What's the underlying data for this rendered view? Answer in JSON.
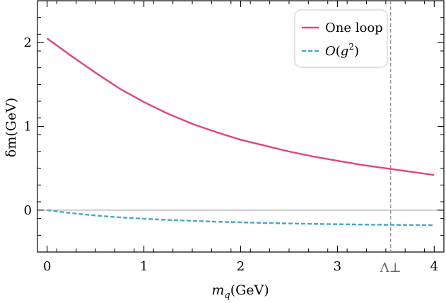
{
  "chart_data": {
    "type": "line",
    "xlabel": "m_q (GeV)",
    "xlabel_parts": {
      "symbol": "m",
      "subscript": "q",
      "unit": "(GeV)"
    },
    "ylabel": "δm(GeV)",
    "xlim": [
      -0.1,
      4.1
    ],
    "ylim": [
      -0.5,
      2.5
    ],
    "xticks": [
      0,
      1,
      2,
      3,
      4
    ],
    "xtick_labels": [
      "0",
      "1",
      "2",
      "3",
      "4"
    ],
    "yticks": [
      0,
      1,
      2
    ],
    "ytick_labels": [
      "0",
      "1",
      "2"
    ],
    "grid": false,
    "legend_position": "top-right",
    "reference_lines": {
      "horizontal_y": 0,
      "vertical_x": 3.55,
      "vertical_label": "Λ⊥"
    },
    "series": [
      {
        "name": "One loop",
        "color": "#e0457b",
        "style": "solid",
        "x": [
          0,
          0.25,
          0.5,
          0.75,
          1.0,
          1.25,
          1.5,
          1.75,
          2.0,
          2.25,
          2.5,
          2.75,
          3.0,
          3.25,
          3.5,
          3.75,
          4.0
        ],
        "y": [
          2.05,
          1.84,
          1.64,
          1.45,
          1.29,
          1.15,
          1.03,
          0.93,
          0.84,
          0.77,
          0.7,
          0.64,
          0.59,
          0.54,
          0.5,
          0.46,
          0.42
        ]
      },
      {
        "name": "O(g²)",
        "legend_parts": {
          "symbol": "O",
          "open": "(",
          "var": "g",
          "sup": "2",
          "close": ")"
        },
        "color": "#4aa6c4",
        "style": "dashed",
        "x": [
          0,
          0.25,
          0.5,
          0.75,
          1.0,
          1.25,
          1.5,
          1.75,
          2.0,
          2.25,
          2.5,
          2.75,
          3.0,
          3.25,
          3.5,
          3.75,
          4.0
        ],
        "y": [
          0,
          -0.036,
          -0.064,
          -0.086,
          -0.103,
          -0.117,
          -0.128,
          -0.138,
          -0.146,
          -0.153,
          -0.159,
          -0.164,
          -0.168,
          -0.172,
          -0.175,
          -0.178,
          -0.18
        ]
      }
    ]
  }
}
